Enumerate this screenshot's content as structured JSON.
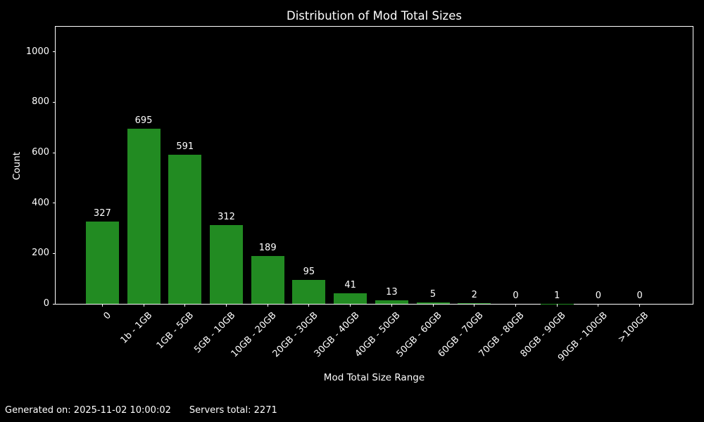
{
  "colors": {
    "background": "#000000",
    "text": "#ffffff",
    "axis": "#ffffff",
    "bar": "#228b22"
  },
  "chart_data": {
    "type": "bar",
    "title": "Distribution of Mod Total Sizes",
    "xlabel": "Mod Total Size Range",
    "ylabel": "Count",
    "categories": [
      "0",
      "1b - 1GB",
      "1GB - 5GB",
      "5GB - 10GB",
      "10GB - 20GB",
      "20GB - 30GB",
      "30GB - 40GB",
      "40GB - 50GB",
      "50GB - 60GB",
      "60GB - 70GB",
      "70GB - 80GB",
      "80GB - 90GB",
      "90GB - 100GB",
      ">100GB"
    ],
    "values": [
      327,
      695,
      591,
      312,
      189,
      95,
      41,
      13,
      5,
      2,
      0,
      1,
      0,
      0
    ],
    "value_labels": true,
    "yticks": [
      0,
      200,
      400,
      600,
      800,
      1000
    ],
    "ylim": [
      0,
      1100
    ],
    "bar_color": "#228b22",
    "grid": false,
    "legend": null,
    "xtick_rotation": 45
  },
  "footer": {
    "generated": "Generated on: 2025-11-02 10:00:02",
    "servers": "Servers total: 2271"
  }
}
